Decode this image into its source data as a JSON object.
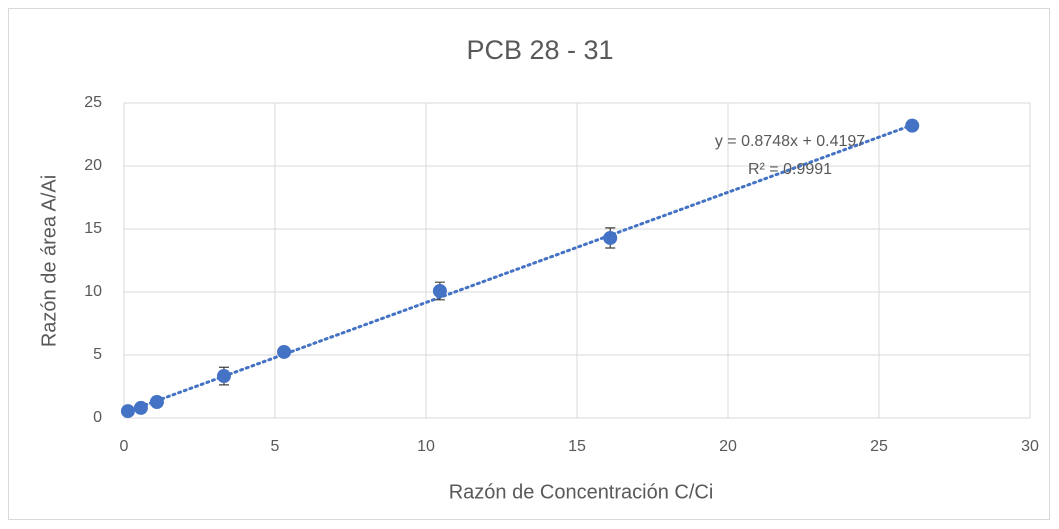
{
  "chart_data": {
    "type": "scatter",
    "title": "PCB 28 - 31",
    "x_label": "Razón de Concentración C/Ci",
    "y_label": "Razón de área A/Ai",
    "series": [
      {
        "name": "PCB 28 - 31",
        "color": "#4472c4",
        "x": [
          0.13,
          0.56,
          1.09,
          3.31,
          5.3,
          10.46,
          16.1,
          26.1
        ],
        "values": [
          0.55,
          0.8,
          1.27,
          3.33,
          5.24,
          10.08,
          14.29,
          23.2
        ],
        "errors": [
          0.1,
          0.1,
          0.15,
          0.7,
          0.2,
          0.7,
          0.8,
          0.2
        ]
      }
    ],
    "trendline": {
      "label": "y = 0.8748x + 0.4197",
      "r2_label": "R² = 0.9991",
      "slope": 0.8748,
      "intercept": 0.4197
    },
    "xlim": [
      0,
      30
    ],
    "xticks": [
      0,
      5,
      10,
      15,
      20,
      25,
      30
    ],
    "ylim": [
      0,
      25
    ],
    "yticks": [
      0,
      5,
      10,
      15,
      20,
      25
    ],
    "grid": true
  }
}
